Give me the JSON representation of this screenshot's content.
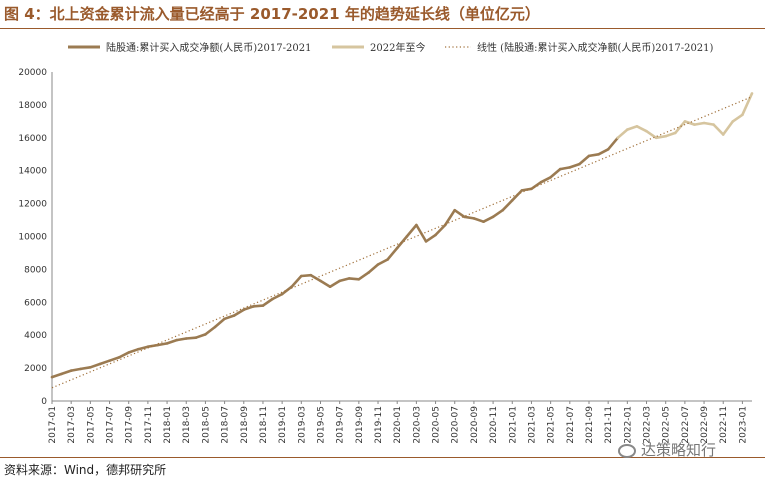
{
  "figure": {
    "title": "图 4：北上资金累计流入量已经高于 2017-2021 年的趋势延长线（单位亿元）",
    "source": "资料来源：Wind，德邦研究所",
    "watermark": "达策略知行",
    "watermark_icon": "wechat-icon"
  },
  "chart_data": {
    "type": "line",
    "ylim": [
      0,
      20000
    ],
    "yticks": [
      0,
      2000,
      4000,
      6000,
      8000,
      10000,
      12000,
      14000,
      16000,
      18000,
      20000
    ],
    "x_range": [
      "2017-01",
      "2023-02"
    ],
    "xticks": [
      "2017-01",
      "2017-03",
      "2017-05",
      "2017-07",
      "2017-09",
      "2017-11",
      "2018-01",
      "2018-03",
      "2018-05",
      "2018-07",
      "2018-09",
      "2018-11",
      "2019-01",
      "2019-03",
      "2019-05",
      "2019-07",
      "2019-09",
      "2019-11",
      "2020-01",
      "2020-03",
      "2020-05",
      "2020-07",
      "2020-09",
      "2020-11",
      "2021-01",
      "2021-03",
      "2021-05",
      "2021-07",
      "2021-09",
      "2021-11",
      "2022-01",
      "2022-03",
      "2022-05",
      "2022-07",
      "2022-09",
      "2022-11",
      "2023-01"
    ],
    "grid": false,
    "legend_position": "top",
    "colors": {
      "main": "#9b7b52",
      "recent": "#d6c59f",
      "trend": "#a0703a"
    },
    "series": [
      {
        "name": "陆股通:累计买入成交净额(人民币)2017-2021",
        "style": "solid",
        "x": [
          "2017-01",
          "2017-02",
          "2017-03",
          "2017-04",
          "2017-05",
          "2017-06",
          "2017-07",
          "2017-08",
          "2017-09",
          "2017-10",
          "2017-11",
          "2017-12",
          "2018-01",
          "2018-02",
          "2018-03",
          "2018-04",
          "2018-05",
          "2018-06",
          "2018-07",
          "2018-08",
          "2018-09",
          "2018-10",
          "2018-11",
          "2018-12",
          "2019-01",
          "2019-02",
          "2019-03",
          "2019-04",
          "2019-05",
          "2019-06",
          "2019-07",
          "2019-08",
          "2019-09",
          "2019-10",
          "2019-11",
          "2019-12",
          "2020-01",
          "2020-02",
          "2020-03",
          "2020-04",
          "2020-05",
          "2020-06",
          "2020-07",
          "2020-08",
          "2020-09",
          "2020-10",
          "2020-11",
          "2020-12",
          "2021-01",
          "2021-02",
          "2021-03",
          "2021-04",
          "2021-05",
          "2021-06",
          "2021-07",
          "2021-08",
          "2021-09",
          "2021-10",
          "2021-11",
          "2021-12"
        ],
        "values": [
          1450,
          1650,
          1850,
          1950,
          2050,
          2250,
          2450,
          2650,
          2950,
          3150,
          3300,
          3400,
          3500,
          3700,
          3800,
          3850,
          4050,
          4500,
          5000,
          5200,
          5550,
          5750,
          5800,
          6200,
          6500,
          6950,
          7600,
          7650,
          7300,
          6950,
          7300,
          7450,
          7400,
          7800,
          8300,
          8600,
          9300,
          10000,
          10700,
          9700,
          10100,
          10700,
          11600,
          11200,
          11100,
          10900,
          11200,
          11600,
          12200,
          12800,
          12900,
          13300,
          13600,
          14100,
          14200,
          14400,
          14900,
          15000,
          15300,
          16000
        ]
      },
      {
        "name": "2022年至今",
        "style": "solid",
        "x": [
          "2021-12",
          "2022-01",
          "2022-02",
          "2022-03",
          "2022-04",
          "2022-05",
          "2022-06",
          "2022-07",
          "2022-08",
          "2022-09",
          "2022-10",
          "2022-11",
          "2022-12",
          "2023-01",
          "2023-02"
        ],
        "values": [
          16000,
          16500,
          16700,
          16400,
          16000,
          16100,
          16300,
          17000,
          16800,
          16900,
          16800,
          16200,
          17000,
          17400,
          18700
        ]
      },
      {
        "name": "线性 (陆股通:累计买入成交净额(人民币)2017-2021)",
        "style": "dotted",
        "x": [
          "2017-01",
          "2023-02"
        ],
        "values": [
          800,
          18500
        ]
      }
    ]
  }
}
